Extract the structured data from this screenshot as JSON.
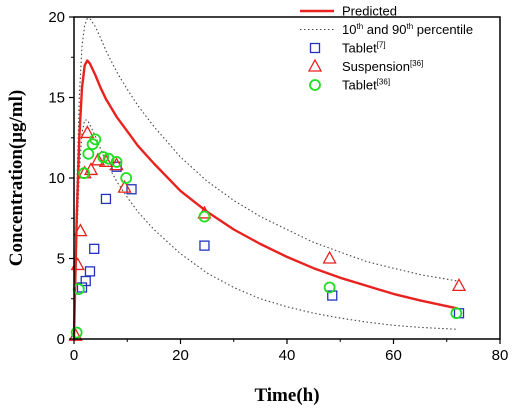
{
  "chart_data": {
    "type": "scatter",
    "xlabel": "Time(h)",
    "ylabel": "Concentration(μg/ml)",
    "xlim": [
      0,
      80
    ],
    "ylim": [
      0,
      20
    ],
    "x_ticks": [
      "0",
      "20",
      "40",
      "60",
      "80"
    ],
    "y_ticks": [
      "0",
      "5",
      "10",
      "15",
      "20"
    ],
    "grid": false,
    "legend_position": "top-right",
    "legend": [
      {
        "series": "predicted",
        "text": "Predicted",
        "sup": "",
        "tail": ""
      },
      {
        "series": "percentile",
        "text": "10",
        "sup": "th",
        "mid": " and 90",
        "sup2": "th",
        "tail": " percentile"
      },
      {
        "series": "tablet7",
        "text": "Tablet",
        "sup": "[7]",
        "tail": ""
      },
      {
        "series": "suspension36",
        "text": "Suspension",
        "sup": "[36]",
        "tail": ""
      },
      {
        "series": "tablet36",
        "text": "Tablet",
        "sup": "[36]",
        "tail": ""
      }
    ],
    "series": [
      {
        "id": "predicted",
        "style": "line",
        "color": "#e8221e",
        "x": [
          0,
          0.5,
          1,
          1.5,
          2,
          2.5,
          3,
          4,
          5,
          6,
          8,
          10,
          12,
          15,
          20,
          25,
          30,
          35,
          40,
          45,
          50,
          55,
          60,
          65,
          72
        ],
        "y": [
          0,
          7.5,
          12.5,
          15.6,
          17.0,
          17.3,
          17.1,
          16.4,
          15.6,
          14.9,
          13.8,
          12.9,
          12.0,
          10.9,
          9.2,
          7.9,
          6.8,
          5.9,
          5.1,
          4.4,
          3.8,
          3.3,
          2.8,
          2.4,
          1.9
        ]
      },
      {
        "id": "p90",
        "style": "dotted",
        "color": "#444444",
        "x": [
          0,
          0.5,
          1,
          1.5,
          2,
          2.5,
          3,
          4,
          5,
          6,
          8,
          10,
          12,
          15,
          20,
          25,
          30,
          35,
          40,
          45,
          50,
          55,
          60,
          65,
          72
        ],
        "y": [
          0,
          9.0,
          15.0,
          18.2,
          19.5,
          19.9,
          19.9,
          19.4,
          18.7,
          17.9,
          16.6,
          15.5,
          14.5,
          13.2,
          11.3,
          9.8,
          8.6,
          7.6,
          6.8,
          6.0,
          5.4,
          4.8,
          4.4,
          4.0,
          3.6
        ]
      },
      {
        "id": "p10",
        "style": "dotted",
        "color": "#444444",
        "x": [
          0,
          0.5,
          1,
          1.5,
          2,
          2.5,
          3,
          4,
          5,
          6,
          8,
          10,
          12,
          15,
          20,
          25,
          30,
          35,
          40,
          45,
          50,
          55,
          60,
          65,
          72
        ],
        "y": [
          0,
          6.0,
          10.4,
          12.8,
          13.6,
          13.6,
          13.3,
          12.6,
          11.8,
          11.0,
          9.8,
          8.8,
          7.9,
          6.8,
          5.3,
          4.1,
          3.2,
          2.5,
          2.0,
          1.6,
          1.3,
          1.05,
          0.85,
          0.72,
          0.6
        ]
      },
      {
        "id": "tablet7",
        "style": "square",
        "color": "#2233bb",
        "x": [
          1.5,
          2.2,
          3.0,
          3.8,
          6.0,
          8.0,
          10.8,
          24.5,
          48.5,
          72.3
        ],
        "y": [
          3.2,
          3.6,
          4.2,
          5.6,
          8.7,
          10.7,
          9.3,
          5.8,
          2.7,
          1.6
        ]
      },
      {
        "id": "suspension36",
        "style": "triangle",
        "color": "#e8221e",
        "x": [
          0.3,
          0.7,
          1.2,
          2.0,
          2.5,
          3.2,
          4.5,
          6.0,
          8.0,
          9.5,
          24.5,
          48.0,
          72.3
        ],
        "y": [
          0.2,
          4.6,
          6.7,
          10.3,
          12.8,
          10.5,
          11.1,
          11.0,
          10.8,
          9.4,
          7.8,
          5.0,
          3.3
        ]
      },
      {
        "id": "tablet36",
        "style": "circle",
        "color": "#22dd22",
        "x": [
          0.5,
          0.9,
          1.9,
          2.7,
          3.5,
          4.0,
          5.5,
          6.5,
          8.0,
          9.8,
          24.5,
          48.0,
          71.8
        ],
        "y": [
          0.4,
          3.1,
          10.3,
          11.5,
          12.1,
          12.4,
          11.3,
          11.2,
          11.0,
          10.0,
          7.6,
          3.2,
          1.6
        ]
      }
    ]
  }
}
